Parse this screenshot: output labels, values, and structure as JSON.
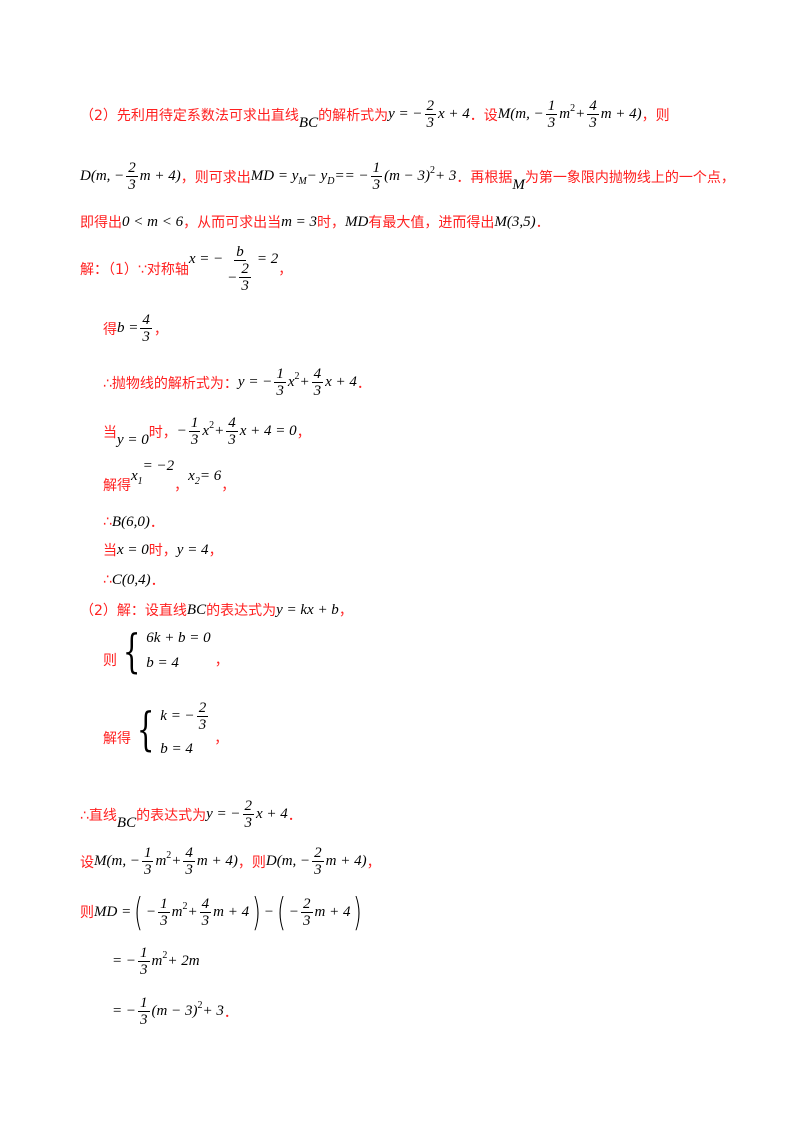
{
  "lines": [
    [
      {
        "c": "（2）先利用待定系数法可求出直线"
      },
      {
        "m": "BC",
        "cls": "low"
      },
      {
        "c": "的解析式为"
      },
      {
        "m": "y = −"
      },
      {
        "f": [
          [
            {
              "m": "2"
            }
          ],
          [
            {
              "m": "3"
            }
          ]
        ]
      },
      {
        "m": "x + 4"
      },
      {
        "c": "．设"
      },
      {
        "m": "M(m, −"
      },
      {
        "f": [
          [
            {
              "m": "1"
            }
          ],
          [
            {
              "m": "3"
            }
          ]
        ]
      },
      {
        "m": "m"
      },
      {
        "sup": "2"
      },
      {
        "m": " + "
      },
      {
        "f": [
          [
            {
              "m": "4"
            }
          ],
          [
            {
              "m": "3"
            }
          ]
        ]
      },
      {
        "m": "m + 4)"
      },
      {
        "c": "，则"
      }
    ],
    [
      {
        "m": "D(m, −"
      },
      {
        "f": [
          [
            {
              "m": "2"
            }
          ],
          [
            {
              "m": "3"
            }
          ]
        ]
      },
      {
        "m": "m + 4)"
      },
      {
        "c": "，则可求出"
      },
      {
        "m": "MD = y"
      },
      {
        "sub": "M"
      },
      {
        "m": " − y"
      },
      {
        "sub": "D"
      },
      {
        "m": " == −"
      },
      {
        "f": [
          [
            {
              "m": "1"
            }
          ],
          [
            {
              "m": "3"
            }
          ]
        ]
      },
      {
        "m": "(m − 3)"
      },
      {
        "sup": "2"
      },
      {
        "m": " + 3"
      },
      {
        "c": "．再根据"
      },
      {
        "m": "M",
        "cls": "low"
      },
      {
        "c": "为第一象限内抛物线上的一个点，"
      }
    ],
    [
      {
        "c": "即得出"
      },
      {
        "m": "0 < m < 6"
      },
      {
        "c": "，从而可求出当"
      },
      {
        "m": "m = 3"
      },
      {
        "c": "时，"
      },
      {
        "m": "MD"
      },
      {
        "c": "有最大值，进而得出"
      },
      {
        "m": "M(3,5)"
      },
      {
        "c": "．"
      }
    ],
    [
      {
        "c": "解：（1）∵对称轴"
      },
      {
        "m": "x = −",
        "cls": "hi"
      },
      {
        "f": [
          [
            {
              "m": "b"
            }
          ],
          [
            {
              "m": "−"
            },
            {
              "f": [
                [
                  {
                    "m": "2"
                  }
                ],
                [
                  {
                    "m": "3"
                  }
                ]
              ]
            }
          ]
        ]
      },
      {
        "m": "= 2",
        "cls": "hi"
      },
      {
        "c": "，"
      }
    ],
    [
      {
        "c": "得"
      },
      {
        "m": "b = "
      },
      {
        "f": [
          [
            {
              "m": "4"
            }
          ],
          [
            {
              "m": "3"
            }
          ]
        ]
      },
      {
        "c": "，"
      }
    ],
    [
      {
        "c": "∴抛物线的解析式为："
      },
      {
        "m": "y = −"
      },
      {
        "f": [
          [
            {
              "m": "1"
            }
          ],
          [
            {
              "m": "3"
            }
          ]
        ]
      },
      {
        "m": "x"
      },
      {
        "sup": "2"
      },
      {
        "m": " + "
      },
      {
        "f": [
          [
            {
              "m": "4"
            }
          ],
          [
            {
              "m": "3"
            }
          ]
        ]
      },
      {
        "m": "x + 4"
      },
      {
        "c": "．"
      }
    ],
    [
      {
        "c": "当"
      },
      {
        "m": "y = 0",
        "cls": "low"
      },
      {
        "c": "时，"
      },
      {
        "m": "−"
      },
      {
        "f": [
          [
            {
              "m": "1"
            }
          ],
          [
            {
              "m": "3"
            }
          ]
        ]
      },
      {
        "m": "x"
      },
      {
        "sup": "2"
      },
      {
        "m": " + "
      },
      {
        "f": [
          [
            {
              "m": "4"
            }
          ],
          [
            {
              "m": "3"
            }
          ]
        ]
      },
      {
        "m": "x + 4 = 0"
      },
      {
        "c": "，"
      }
    ],
    [
      {
        "c": "解得",
        "cls": "low"
      },
      {
        "m": "x"
      },
      {
        "sub": "1"
      },
      {
        "m": " = −2",
        "cls": "hi"
      },
      {
        "c": "，  ",
        "cls": "low"
      },
      {
        "m": "x"
      },
      {
        "sub": "2"
      },
      {
        "m": " = 6"
      },
      {
        "c": "，",
        "cls": "low"
      }
    ],
    [
      {
        "c": "∴"
      },
      {
        "m": "B(6,0)"
      },
      {
        "c": "．"
      }
    ],
    [
      {
        "c": "当"
      },
      {
        "m": "x = 0"
      },
      {
        "c": "时，"
      },
      {
        "m": "y = 4"
      },
      {
        "c": "，"
      }
    ],
    [
      {
        "c": "∴"
      },
      {
        "m": "C(0,4)"
      },
      {
        "c": "．"
      }
    ],
    [
      {
        "c": "（2）解：设直线"
      },
      {
        "m": "BC"
      },
      {
        "c": "的表达式为"
      },
      {
        "m": "y = kx + b"
      },
      {
        "c": "，"
      }
    ],
    [
      {
        "c": "则",
        "cls": "low"
      },
      {
        "sys": [
          [
            {
              "m": "6k + b = 0"
            }
          ],
          [
            {
              "m": "b = 4"
            }
          ]
        ]
      },
      {
        "c": "，",
        "cls": "low"
      }
    ],
    [
      {
        "c": "解得",
        "cls": "low"
      },
      {
        "sys": [
          [
            {
              "m": "k = −"
            },
            {
              "f": [
                [
                  {
                    "m": "2"
                  }
                ],
                [
                  {
                    "m": "3"
                  }
                ]
              ]
            }
          ],
          [
            {
              "m": "b = 4"
            }
          ]
        ]
      },
      {
        "c": "，",
        "cls": "low"
      }
    ],
    [
      {
        "c": "∴直线"
      },
      {
        "m": "BC",
        "cls": "low"
      },
      {
        "c": "的表达式为"
      },
      {
        "m": "y = −"
      },
      {
        "f": [
          [
            {
              "m": "2"
            }
          ],
          [
            {
              "m": "3"
            }
          ]
        ]
      },
      {
        "m": "x + 4"
      },
      {
        "c": "．"
      }
    ],
    [
      {
        "c": "设"
      },
      {
        "m": "M(m, −"
      },
      {
        "f": [
          [
            {
              "m": "1"
            }
          ],
          [
            {
              "m": "3"
            }
          ]
        ]
      },
      {
        "m": "m"
      },
      {
        "sup": "2"
      },
      {
        "m": " + "
      },
      {
        "f": [
          [
            {
              "m": "4"
            }
          ],
          [
            {
              "m": "3"
            }
          ]
        ]
      },
      {
        "m": "m + 4)"
      },
      {
        "c": "，则"
      },
      {
        "m": "D(m, −"
      },
      {
        "f": [
          [
            {
              "m": "2"
            }
          ],
          [
            {
              "m": "3"
            }
          ]
        ]
      },
      {
        "m": "m + 4)"
      },
      {
        "c": "，"
      }
    ],
    [
      {
        "c": "则"
      },
      {
        "m": "MD = "
      },
      {
        "p": [
          {
            "m": "−"
          },
          {
            "f": [
              [
                {
                  "m": "1"
                }
              ],
              [
                {
                  "m": "3"
                }
              ]
            ]
          },
          {
            "m": "m"
          },
          {
            "sup": "2"
          },
          {
            "m": " + "
          },
          {
            "f": [
              [
                {
                  "m": "4"
                }
              ],
              [
                {
                  "m": "3"
                }
              ]
            ]
          },
          {
            "m": "m + 4"
          }
        ]
      },
      {
        "m": "−"
      },
      {
        "p": [
          {
            "m": "−"
          },
          {
            "f": [
              [
                {
                  "m": "2"
                }
              ],
              [
                {
                  "m": "3"
                }
              ]
            ]
          },
          {
            "m": "m + 4"
          }
        ]
      }
    ],
    [
      {
        "m": "= −"
      },
      {
        "f": [
          [
            {
              "m": "1"
            }
          ],
          [
            {
              "m": "3"
            }
          ]
        ]
      },
      {
        "m": "m"
      },
      {
        "sup": "2"
      },
      {
        "m": " + 2m"
      }
    ],
    [
      {
        "m": "= −"
      },
      {
        "f": [
          [
            {
              "m": "1"
            }
          ],
          [
            {
              "m": "3"
            }
          ]
        ]
      },
      {
        "m": "(m − 3)"
      },
      {
        "sup": "2"
      },
      {
        "m": " + 3"
      },
      {
        "c": "．"
      }
    ]
  ],
  "colors": {
    "chinese_text": "#ff2020",
    "math": "#000000"
  }
}
